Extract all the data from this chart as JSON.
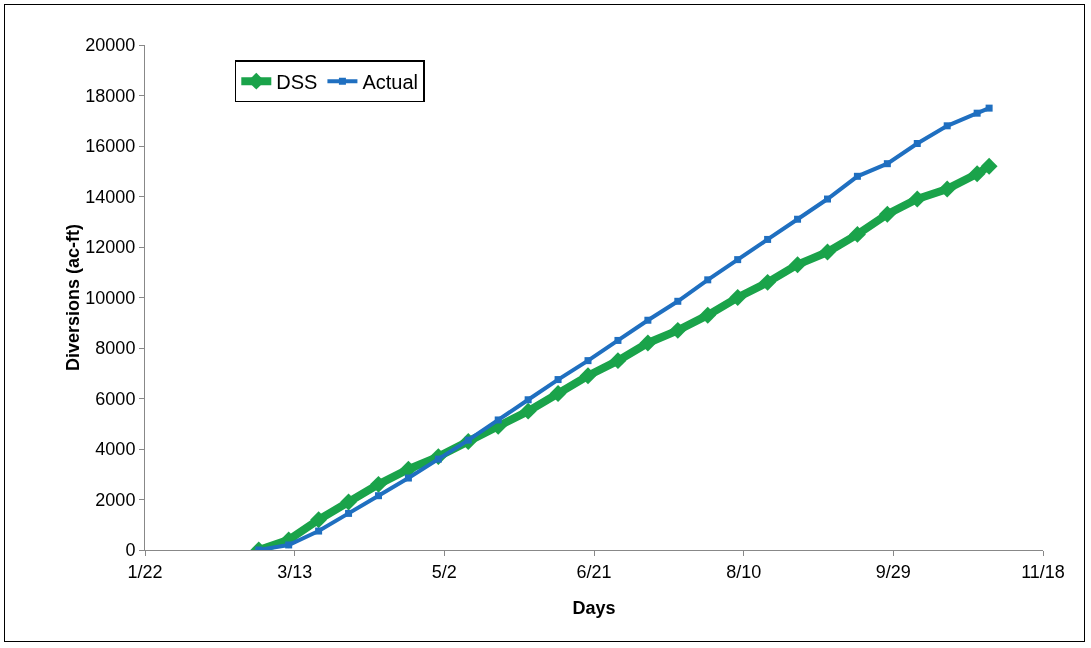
{
  "chart_data": {
    "type": "line",
    "xlabel": "Days",
    "ylabel": "Diversions (ac-ft)",
    "x": [
      "--03-01",
      "--03-11",
      "--03-21",
      "--03-31",
      "--04-10",
      "--04-20",
      "--04-30",
      "--05-10",
      "--05-20",
      "--05-30",
      "--06-09",
      "--06-19",
      "--06-29",
      "--07-09",
      "--07-19",
      "--07-29",
      "--08-08",
      "--08-18",
      "--08-28",
      "--09-07",
      "--09-17",
      "--09-27",
      "--10-07",
      "--10-17",
      "--10-27",
      "--10-31"
    ],
    "series": [
      {
        "name": "DSS",
        "color": "#1aa34a",
        "marker": "diamond",
        "values": [
          0,
          400,
          1200,
          1900,
          2600,
          3200,
          3700,
          4300,
          4900,
          5500,
          6200,
          6900,
          7500,
          8200,
          8700,
          9300,
          10000,
          10600,
          11300,
          11800,
          12500,
          13300,
          13900,
          14300,
          14900,
          15200
        ]
      },
      {
        "name": "Actual",
        "color": "#1f6fc0",
        "marker": "square",
        "values": [
          0,
          200,
          750,
          1450,
          2150,
          2850,
          3600,
          4350,
          5150,
          5950,
          6750,
          7500,
          8300,
          9100,
          9850,
          10700,
          11500,
          12300,
          13100,
          13900,
          14800,
          15300,
          16100,
          16800,
          17300,
          17500
        ]
      }
    ],
    "xlim": [
      "--01-22",
      "--11-18"
    ],
    "xticks": [
      {
        "value": "--01-22",
        "label": "1/22"
      },
      {
        "value": "--03-13",
        "label": "3/13"
      },
      {
        "value": "--05-02",
        "label": "5/2"
      },
      {
        "value": "--06-21",
        "label": "6/21"
      },
      {
        "value": "--08-10",
        "label": "8/10"
      },
      {
        "value": "--09-29",
        "label": "9/29"
      },
      {
        "value": "--11-18",
        "label": "11/18"
      }
    ],
    "ylim": [
      0,
      20000
    ],
    "yticks": [
      0,
      2000,
      4000,
      6000,
      8000,
      10000,
      12000,
      14000,
      16000,
      18000,
      20000
    ],
    "grid": false,
    "legend": "top left"
  }
}
